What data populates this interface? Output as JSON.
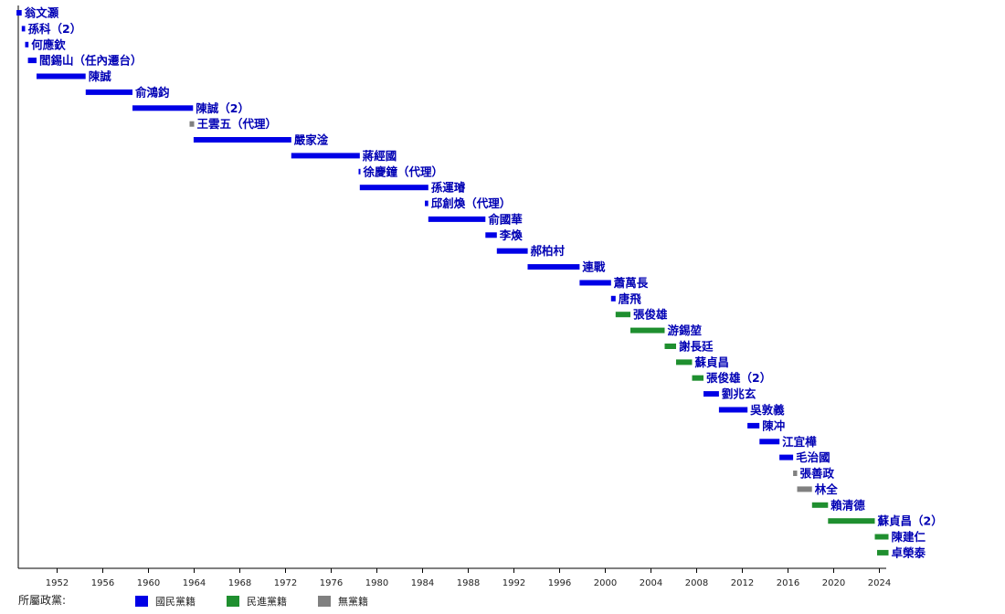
{
  "chart_data": {
    "type": "bar",
    "orientation": "horizontal-timeline",
    "x_ticks": [
      1952,
      1956,
      1960,
      1964,
      1968,
      1972,
      1976,
      1980,
      1984,
      1988,
      1992,
      1996,
      2000,
      2004,
      2008,
      2012,
      2016,
      2020,
      2024
    ],
    "xlim": [
      1948.6,
      2024.6
    ],
    "grid": false,
    "colors": {
      "kmt": "#0000e6",
      "dpp": "#1f8f2f",
      "none": "#808080"
    },
    "legend": {
      "title": "所屬政黨:",
      "placement": "bottom",
      "entries": [
        {
          "party": "kmt",
          "label": "國民黨籍"
        },
        {
          "party": "dpp",
          "label": "民進黨籍"
        },
        {
          "party": "none",
          "label": "無黨籍"
        }
      ]
    },
    "series": [
      {
        "label": "翁文灝",
        "start": 1948.45,
        "end": 1948.9,
        "party": "kmt"
      },
      {
        "label": "孫科（2）",
        "start": 1948.9,
        "end": 1949.2,
        "party": "kmt"
      },
      {
        "label": "何應欽",
        "start": 1949.2,
        "end": 1949.5,
        "party": "kmt"
      },
      {
        "label": "閻錫山（任內遷台）",
        "start": 1949.45,
        "end": 1950.2,
        "party": "kmt"
      },
      {
        "label": "陳誠",
        "start": 1950.2,
        "end": 1954.5,
        "party": "kmt"
      },
      {
        "label": "俞鴻鈞",
        "start": 1954.5,
        "end": 1958.6,
        "party": "kmt"
      },
      {
        "label": "陳誠（2）",
        "start": 1958.6,
        "end": 1963.9,
        "party": "kmt"
      },
      {
        "label": "王雲五（代理）",
        "start": 1963.6,
        "end": 1964.0,
        "party": "none"
      },
      {
        "label": "嚴家淦",
        "start": 1963.95,
        "end": 1972.5,
        "party": "kmt"
      },
      {
        "label": "蔣經國",
        "start": 1972.5,
        "end": 1978.5,
        "party": "kmt"
      },
      {
        "label": "徐慶鐘（代理）",
        "start": 1978.4,
        "end": 1978.55,
        "party": "kmt"
      },
      {
        "label": "孫運璿",
        "start": 1978.5,
        "end": 1984.5,
        "party": "kmt"
      },
      {
        "label": "邱創煥（代理）",
        "start": 1984.2,
        "end": 1984.5,
        "party": "kmt"
      },
      {
        "label": "俞國華",
        "start": 1984.5,
        "end": 1989.5,
        "party": "kmt"
      },
      {
        "label": "李煥",
        "start": 1989.5,
        "end": 1990.5,
        "party": "kmt"
      },
      {
        "label": "郝柏村",
        "start": 1990.5,
        "end": 1993.2,
        "party": "kmt"
      },
      {
        "label": "連戰",
        "start": 1993.2,
        "end": 1997.75,
        "party": "kmt"
      },
      {
        "label": "蕭萬長",
        "start": 1997.75,
        "end": 2000.5,
        "party": "kmt"
      },
      {
        "label": "唐飛",
        "start": 2000.5,
        "end": 2000.9,
        "party": "kmt"
      },
      {
        "label": "張俊雄",
        "start": 2000.9,
        "end": 2002.2,
        "party": "dpp"
      },
      {
        "label": "游錫堃",
        "start": 2002.2,
        "end": 2005.2,
        "party": "dpp"
      },
      {
        "label": "謝長廷",
        "start": 2005.2,
        "end": 2006.2,
        "party": "dpp"
      },
      {
        "label": "蘇貞昌",
        "start": 2006.2,
        "end": 2007.6,
        "party": "dpp"
      },
      {
        "label": "張俊雄（2）",
        "start": 2007.6,
        "end": 2008.6,
        "party": "dpp"
      },
      {
        "label": "劉兆玄",
        "start": 2008.6,
        "end": 2009.95,
        "party": "kmt"
      },
      {
        "label": "吳敦義",
        "start": 2009.95,
        "end": 2012.45,
        "party": "kmt"
      },
      {
        "label": "陳冲",
        "start": 2012.45,
        "end": 2013.5,
        "party": "kmt"
      },
      {
        "label": "江宜樺",
        "start": 2013.5,
        "end": 2015.25,
        "party": "kmt"
      },
      {
        "label": "毛治國",
        "start": 2015.25,
        "end": 2016.45,
        "party": "kmt"
      },
      {
        "label": "張善政",
        "start": 2016.45,
        "end": 2016.8,
        "party": "none"
      },
      {
        "label": "林全",
        "start": 2016.8,
        "end": 2018.1,
        "party": "none"
      },
      {
        "label": "賴清德",
        "start": 2018.1,
        "end": 2019.5,
        "party": "dpp"
      },
      {
        "label": "蘇貞昌（2）",
        "start": 2019.5,
        "end": 2023.6,
        "party": "dpp"
      },
      {
        "label": "陳建仁",
        "start": 2023.6,
        "end": 2024.8,
        "party": "dpp"
      },
      {
        "label": "卓榮泰",
        "start": 2023.8,
        "end": 2024.8,
        "party": "dpp"
      }
    ]
  }
}
